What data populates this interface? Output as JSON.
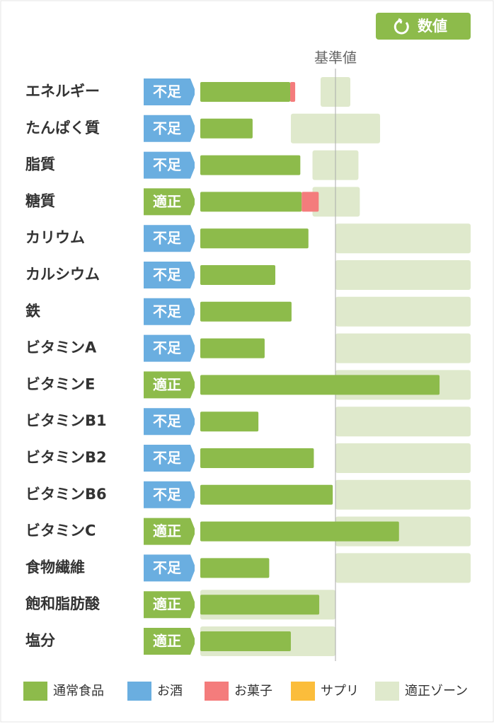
{
  "chart_data": {
    "type": "bar",
    "button": "数値",
    "reference": {
      "label": "基準値",
      "value": 100
    },
    "xlim": [
      0,
      200
    ],
    "categories": [
      "エネルギー",
      "たんぱく質",
      "脂質",
      "糖質",
      "カリウム",
      "カルシウム",
      "鉄",
      "ビタミンA",
      "ビタミンE",
      "ビタミンB1",
      "ビタミンB2",
      "ビタミンB6",
      "ビタミンC",
      "食物繊維",
      "飽和脂肪酸",
      "塩分"
    ],
    "statuses": [
      "不足",
      "不足",
      "不足",
      "適正",
      "不足",
      "不足",
      "不足",
      "不足",
      "適正",
      "不足",
      "不足",
      "不足",
      "適正",
      "不足",
      "適正",
      "適正"
    ],
    "status_colors": [
      "#6aaee0",
      "#6aaee0",
      "#6aaee0",
      "#8dbb4b",
      "#6aaee0",
      "#6aaee0",
      "#6aaee0",
      "#6aaee0",
      "#8dbb4b",
      "#6aaee0",
      "#6aaee0",
      "#6aaee0",
      "#8dbb4b",
      "#6aaee0",
      "#8dbb4b",
      "#8dbb4b"
    ],
    "series": [
      {
        "name": "通常食品",
        "color": "#8dbb4b",
        "values": [
          66.5,
          38.7,
          74,
          75,
          80,
          55.5,
          67.5,
          47.6,
          177,
          43,
          84,
          98,
          147,
          51,
          88,
          67
        ]
      },
      {
        "name": "お酒",
        "color": "#6aaee0",
        "values": [
          0,
          0,
          0,
          0,
          0,
          0,
          0,
          0,
          0,
          0,
          0,
          0,
          0,
          0,
          0,
          0
        ]
      },
      {
        "name": "お菓子",
        "color": "#f47c7c",
        "values": [
          3.7,
          0,
          0,
          12.6,
          0,
          0,
          0,
          0,
          0,
          0,
          0,
          0,
          0,
          0,
          0,
          0
        ]
      },
      {
        "name": "サプリ",
        "color": "#fbbd3b",
        "values": [
          0,
          0,
          0,
          0,
          0,
          0,
          0,
          0,
          0,
          0,
          0,
          0,
          0,
          0,
          0,
          0
        ]
      }
    ],
    "zone": {
      "name": "適正ゾーン",
      "color": "#dfe9cc",
      "ranges": [
        [
          89,
          111
        ],
        [
          67,
          133
        ],
        [
          83,
          117
        ],
        [
          83,
          118
        ],
        [
          100,
          200
        ],
        [
          100,
          200
        ],
        [
          100,
          200
        ],
        [
          100,
          200
        ],
        [
          100,
          200
        ],
        [
          100,
          200
        ],
        [
          100,
          200
        ],
        [
          100,
          200
        ],
        [
          100,
          200
        ],
        [
          100,
          200
        ],
        [
          0,
          100
        ],
        [
          0,
          100
        ]
      ]
    }
  }
}
